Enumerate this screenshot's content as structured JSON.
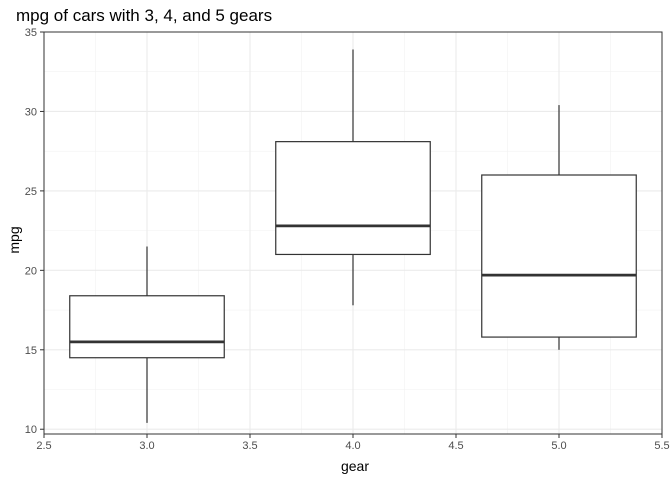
{
  "chart_data": {
    "type": "box",
    "title": "mpg of cars with 3, 4, and 5 gears",
    "xlabel": "gear",
    "ylabel": "mpg",
    "xlim": [
      2.5,
      5.5
    ],
    "ylim": [
      9.7,
      35.0
    ],
    "x_ticks": [
      "2.5",
      "3.0",
      "3.5",
      "4.0",
      "4.5",
      "5.0",
      "5.5"
    ],
    "y_ticks": [
      "10",
      "15",
      "20",
      "25",
      "30",
      "35"
    ],
    "grid": true,
    "legend": "none",
    "boxes": [
      {
        "x": 3.0,
        "min": 10.4,
        "q1": 14.5,
        "median": 15.5,
        "q3": 18.4,
        "max": 21.5
      },
      {
        "x": 4.0,
        "min": 17.8,
        "q1": 21.0,
        "median": 22.8,
        "q3": 28.1,
        "max": 33.9
      },
      {
        "x": 5.0,
        "min": 15.0,
        "q1": 15.8,
        "median": 19.7,
        "q3": 26.0,
        "max": 30.4
      }
    ]
  }
}
